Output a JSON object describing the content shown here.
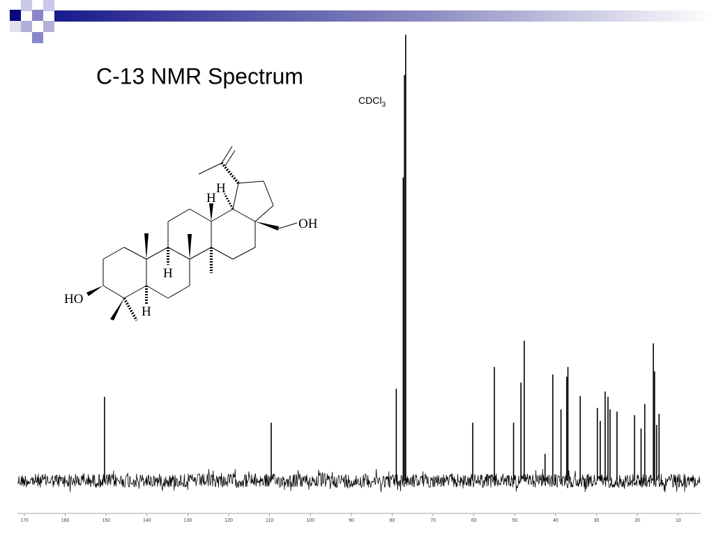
{
  "chart_data": {
    "type": "spectrum",
    "title": "C-13 NMR Spectrum",
    "annotation": {
      "text": "CDCl",
      "subscript": "3"
    },
    "x": [
      150.4,
      109.6,
      79.0,
      77.3,
      77.0,
      76.7,
      60.3,
      55.0,
      50.3,
      48.5,
      47.7,
      42.6,
      40.7,
      38.7,
      37.3,
      37.0,
      34.0,
      29.8,
      29.1,
      27.9,
      27.2,
      26.7,
      25.0,
      20.7,
      19.1,
      18.2,
      16.1,
      15.8,
      15.3,
      14.7
    ],
    "values": [
      18.8,
      13,
      20.6,
      68,
      91,
      100,
      13,
      25.5,
      13,
      22,
      31.4,
      6,
      23.8,
      16,
      23.3,
      25.5,
      19,
      16.3,
      13.4,
      20,
      18.8,
      16,
      15.5,
      14.7,
      11.7,
      17.2,
      30.8,
      24.5,
      12.5,
      15
    ],
    "color": "#000000",
    "xlim": [
      171.7,
      4.5
    ],
    "ylim": [
      0,
      100
    ],
    "xticks": [
      170,
      160,
      150,
      140,
      130,
      120,
      110,
      100,
      90,
      80,
      70,
      60,
      50,
      40,
      30,
      20,
      10
    ]
  },
  "molecule": {
    "labels": [
      "HO",
      "H",
      "H",
      "H",
      "H",
      "OH"
    ]
  }
}
